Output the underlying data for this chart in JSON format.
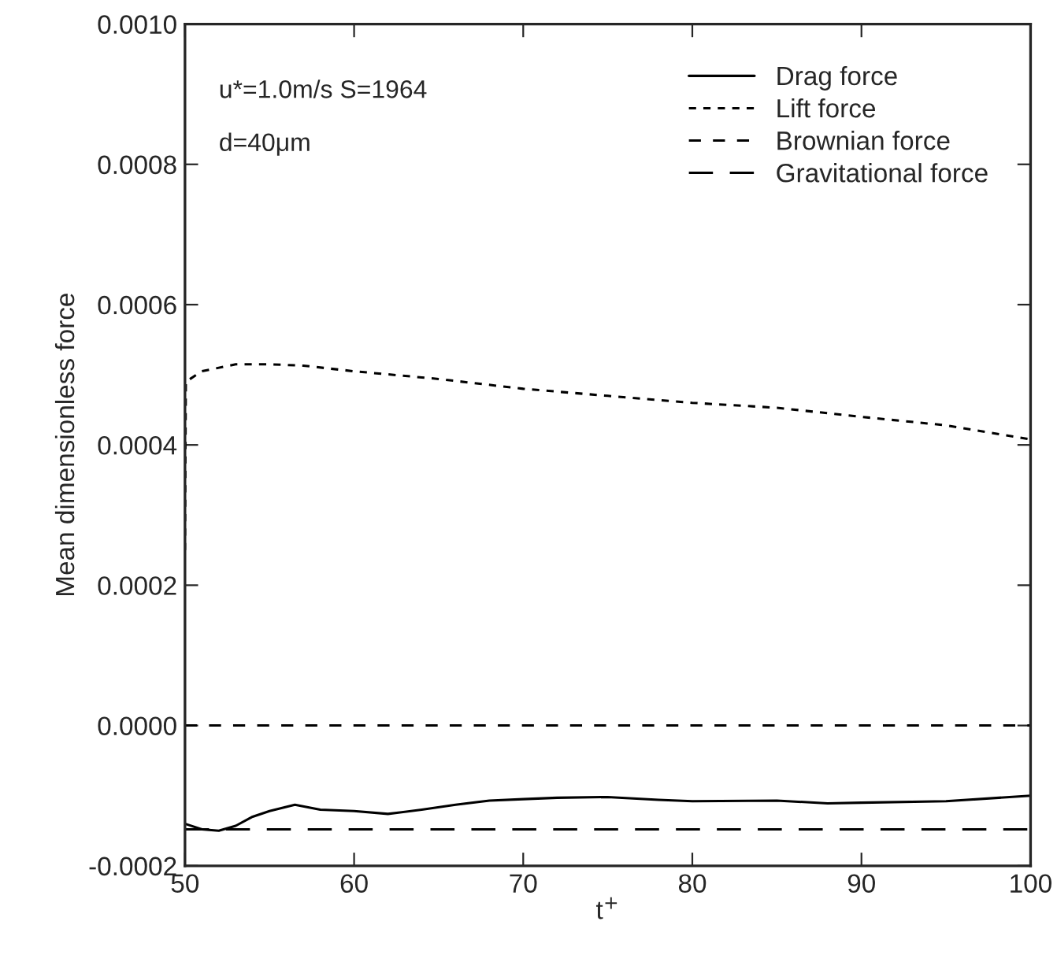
{
  "chart_data": {
    "type": "line",
    "xlabel": "t$^{+}$",
    "ylabel": "Mean dimensionless force",
    "annotations": [
      "u*=1.0m/s S=1964",
      "d=40μm"
    ],
    "xlim": [
      50,
      100
    ],
    "xticks": [
      50,
      60,
      70,
      80,
      90,
      100
    ],
    "ylim": [
      -0.0002,
      0.001
    ],
    "yticks": [
      {
        "value": -0.0002,
        "label": "-0.0002"
      },
      {
        "value": 0.0,
        "label": "0.0000"
      },
      {
        "value": 0.0002,
        "label": "0.0002"
      },
      {
        "value": 0.0004,
        "label": "0.0004"
      },
      {
        "value": 0.0006,
        "label": "0.0006"
      },
      {
        "value": 0.0008,
        "label": "0.0008"
      },
      {
        "value": 0.001,
        "label": "0.0010"
      }
    ],
    "grid": false,
    "legend": "top right",
    "series": [
      {
        "name": "Drag force",
        "color": "#000000",
        "line_style": "solid",
        "x": [
          50,
          51,
          52,
          53,
          54,
          55,
          56.5,
          58,
          60,
          62,
          64,
          66,
          68,
          70,
          72,
          75,
          78,
          80,
          85,
          88,
          90,
          95,
          100
        ],
        "values": [
          -0.00014,
          -0.000148,
          -0.00015,
          -0.000143,
          -0.00013,
          -0.000122,
          -0.000113,
          -0.00012,
          -0.000122,
          -0.000126,
          -0.00012,
          -0.000113,
          -0.000107,
          -0.000105,
          -0.000103,
          -0.000102,
          -0.000106,
          -0.000108,
          -0.000107,
          -0.000111,
          -0.00011,
          -0.000108,
          -0.0001
        ]
      },
      {
        "name": "Lift force",
        "color": "#000000",
        "line_style": "dotted",
        "x": [
          50,
          50.05,
          51,
          53,
          55,
          57,
          60,
          65,
          70,
          75,
          80,
          85,
          90,
          95,
          100
        ],
        "values": [
          0.00025,
          0.00049,
          0.000505,
          0.000515,
          0.000515,
          0.000513,
          0.000505,
          0.000494,
          0.00048,
          0.00047,
          0.00046,
          0.000453,
          0.00044,
          0.000428,
          0.000408
        ]
      },
      {
        "name": "Brownian force",
        "color": "#000000",
        "line_style": "dashed",
        "x": [
          50,
          100
        ],
        "values": [
          0.0,
          0.0
        ]
      },
      {
        "name": "Gravitational force",
        "color": "#000000",
        "line_style": "dashed",
        "x": [
          50,
          100
        ],
        "values": [
          -0.000148,
          -0.000148
        ]
      }
    ]
  }
}
